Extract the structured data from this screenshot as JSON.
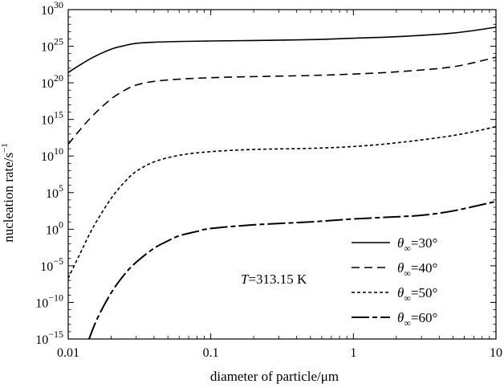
{
  "chart_data": {
    "type": "line",
    "xlabel": "diameter of particle/μm",
    "ylabel_base": "nucleation rate/s",
    "ylabel_sup": "−1",
    "x_scale": "log",
    "y_scale": "log",
    "xlim": [
      0.01,
      10
    ],
    "ylim_exp": [
      -15,
      30
    ],
    "x_ticks": [
      0.01,
      0.1,
      1,
      10
    ],
    "x_tick_labels": [
      "0.01",
      "0.1",
      "1",
      "10"
    ],
    "y_tick_exps": [
      -15,
      -10,
      -5,
      0,
      5,
      10,
      15,
      20,
      25,
      30
    ],
    "y_tick_labels": [
      "−15",
      "−10",
      "−5",
      "0",
      "5",
      "10",
      "15",
      "20",
      "25",
      "30"
    ],
    "annotation": {
      "var": "T",
      "text": "=313.15 K"
    },
    "legend_position": "bottom-right",
    "series": [
      {
        "name": "θ∞=30°",
        "legend_theta": "θ",
        "legend_sub": "∞",
        "legend_rest": "=30°",
        "dash": "solid",
        "points": [
          [
            0.01,
            21.4
          ],
          [
            0.012,
            22.4
          ],
          [
            0.015,
            23.5
          ],
          [
            0.02,
            24.6
          ],
          [
            0.025,
            25.1
          ],
          [
            0.03,
            25.4
          ],
          [
            0.04,
            25.55
          ],
          [
            0.06,
            25.65
          ],
          [
            0.1,
            25.72
          ],
          [
            0.2,
            25.78
          ],
          [
            0.5,
            25.9
          ],
          [
            1,
            26.1
          ],
          [
            2,
            26.3
          ],
          [
            5,
            26.8
          ],
          [
            10,
            27.6
          ]
        ]
      },
      {
        "name": "θ∞=40°",
        "legend_theta": "θ",
        "legend_sub": "∞",
        "legend_rest": "=40°",
        "dash": "dashed",
        "points": [
          [
            0.01,
            11.6
          ],
          [
            0.012,
            13.5
          ],
          [
            0.015,
            15.6
          ],
          [
            0.02,
            17.8
          ],
          [
            0.025,
            19.0
          ],
          [
            0.03,
            19.7
          ],
          [
            0.04,
            20.2
          ],
          [
            0.06,
            20.5
          ],
          [
            0.1,
            20.7
          ],
          [
            0.2,
            20.85
          ],
          [
            0.5,
            21.0
          ],
          [
            1,
            21.2
          ],
          [
            2,
            21.5
          ],
          [
            5,
            22.2
          ],
          [
            10,
            23.5
          ]
        ]
      },
      {
        "name": "θ∞=50°",
        "legend_theta": "θ",
        "legend_sub": "∞",
        "legend_rest": "=50°",
        "dash": "dotted",
        "points": [
          [
            0.01,
            -6.7
          ],
          [
            0.012,
            -3.5
          ],
          [
            0.015,
            0.3
          ],
          [
            0.02,
            4.2
          ],
          [
            0.025,
            6.5
          ],
          [
            0.03,
            7.9
          ],
          [
            0.04,
            9.2
          ],
          [
            0.06,
            10.1
          ],
          [
            0.1,
            10.6
          ],
          [
            0.2,
            10.9
          ],
          [
            0.5,
            11.05
          ],
          [
            1,
            11.3
          ],
          [
            2,
            11.8
          ],
          [
            5,
            12.8
          ],
          [
            10,
            14.0
          ]
        ]
      },
      {
        "name": "θ∞=60°",
        "legend_theta": "θ",
        "legend_sub": "∞",
        "legend_rest": "=60°",
        "dash": "dashdot",
        "points": [
          [
            0.014,
            -15.0
          ],
          [
            0.016,
            -12.2
          ],
          [
            0.02,
            -8.7
          ],
          [
            0.025,
            -6.1
          ],
          [
            0.03,
            -4.5
          ],
          [
            0.04,
            -2.6
          ],
          [
            0.05,
            -1.6
          ],
          [
            0.06,
            -0.9
          ],
          [
            0.08,
            -0.3
          ],
          [
            0.1,
            0.1
          ],
          [
            0.2,
            0.6
          ],
          [
            0.5,
            1.0
          ],
          [
            1,
            1.4
          ],
          [
            2,
            1.7
          ],
          [
            3,
            1.9
          ],
          [
            5,
            2.5
          ],
          [
            10,
            3.8
          ]
        ]
      }
    ]
  }
}
